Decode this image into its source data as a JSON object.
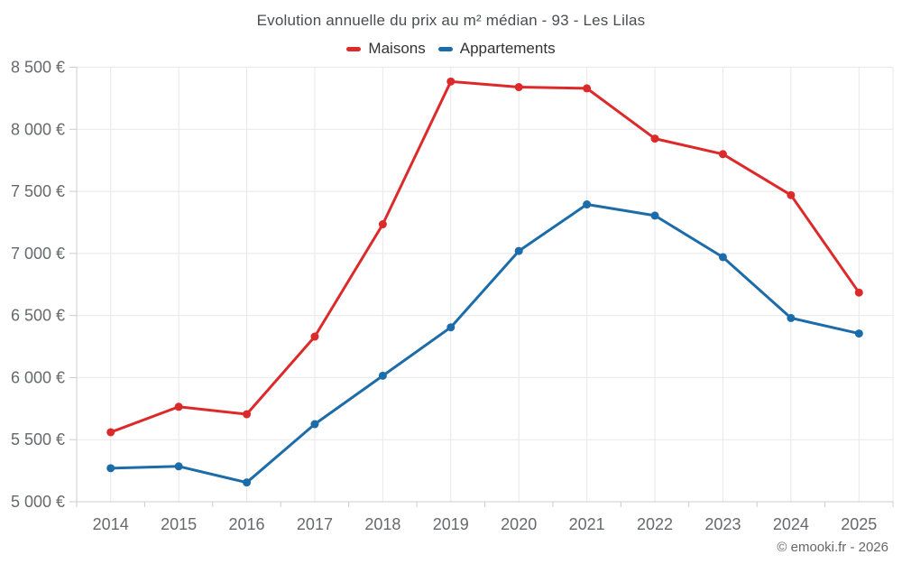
{
  "header": {
    "title": "Evolution annuelle du prix au m² médian - 93 - Les Lilas"
  },
  "legend": {
    "items": [
      {
        "label": "Maisons",
        "color": "#dc2a2a"
      },
      {
        "label": "Appartements",
        "color": "#1b6ca8"
      }
    ]
  },
  "footer": {
    "credit": "© emooki.fr - 2026"
  },
  "chart_data": {
    "type": "line",
    "title": "Evolution annuelle du prix au m² médian - 93 - Les Lilas",
    "categories": [
      "2014",
      "2015",
      "2016",
      "2017",
      "2018",
      "2019",
      "2020",
      "2021",
      "2022",
      "2023",
      "2024",
      "2025"
    ],
    "series": [
      {
        "name": "Maisons",
        "color": "#dc2a2a",
        "values": [
          5560,
          5765,
          5705,
          6330,
          7235,
          8385,
          8340,
          8330,
          7925,
          7800,
          7470,
          6685
        ]
      },
      {
        "name": "Appartements",
        "color": "#1b6ca8",
        "values": [
          5270,
          5285,
          5155,
          5625,
          6015,
          6405,
          7020,
          7395,
          7305,
          6970,
          6480,
          6355
        ]
      }
    ],
    "xlabel": "",
    "ylabel": "",
    "ylim": [
      5000,
      8500
    ],
    "ytick_step": 500,
    "ytick_suffix": " €",
    "grid": true,
    "legend_position": "top",
    "marker_radius": 4.5,
    "line_width": 3,
    "colors": {
      "grid": "#e8e8e8",
      "axis_line": "#cccccc",
      "tick_text": "#66696c"
    }
  }
}
